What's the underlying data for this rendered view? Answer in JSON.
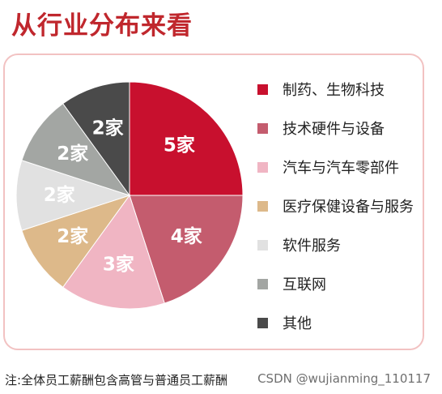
{
  "header": {
    "title": "从行业分布来看"
  },
  "chart_data": {
    "type": "pie",
    "categories": [
      "制药、生物科技",
      "技术硬件与设备",
      "汽车与汽车零部件",
      "医疗保健设备与服务",
      "软件服务",
      "互联网",
      "其他"
    ],
    "values": [
      5,
      4,
      3,
      2,
      2,
      2,
      2
    ],
    "value_labels": [
      "5家",
      "4家",
      "3家",
      "2家",
      "2家",
      "2家",
      "2家"
    ],
    "colors": [
      "#c8102e",
      "#c45c6e",
      "#f0b5c3",
      "#ddb98a",
      "#e1e1e1",
      "#a3a6a3",
      "#4a4a4a"
    ],
    "legend_position": "right"
  },
  "footer": {
    "note": "注:全体员工薪酬包含高管与普通员工薪酬",
    "watermark": "CSDN @wujianming_110117"
  }
}
